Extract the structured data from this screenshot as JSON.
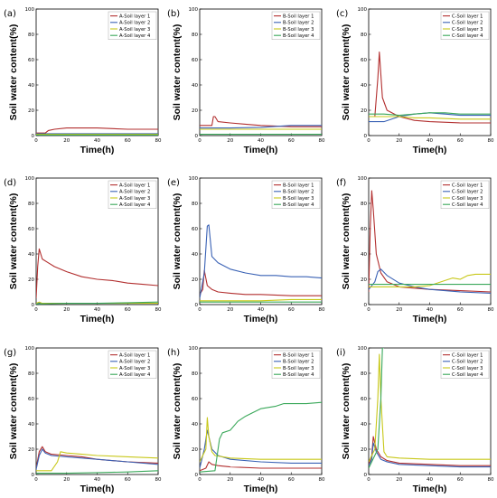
{
  "colors": {
    "layer1": "#b22f2f",
    "layer2": "#3a62b5",
    "layer3": "#c8c81a",
    "layer4": "#3aa85a"
  },
  "chart_data": [
    {
      "type": "line",
      "panel": "(a)",
      "xlabel": "Time(h)",
      "ylabel": "Soil water content(%)",
      "xlim": [
        0,
        80
      ],
      "ylim": [
        0,
        100
      ],
      "xticks": [
        0,
        20,
        40,
        60,
        80
      ],
      "yticks": [
        0,
        20,
        40,
        60,
        80,
        100
      ],
      "legend": "top-right",
      "series": [
        {
          "name": "A-Soil layer 1",
          "color": "#b22f2f",
          "x": [
            0,
            6,
            8,
            12,
            20,
            30,
            40,
            60,
            80
          ],
          "y": [
            2,
            2,
            4,
            5,
            6,
            6,
            6,
            5,
            5
          ]
        },
        {
          "name": "A-Soil layer 2",
          "color": "#3a62b5",
          "x": [
            0,
            20,
            40,
            60,
            80
          ],
          "y": [
            1.5,
            1.5,
            1.5,
            1.5,
            1.5
          ]
        },
        {
          "name": "A-Soil layer 3",
          "color": "#c8c81a",
          "x": [
            0,
            20,
            40,
            60,
            80
          ],
          "y": [
            1,
            1,
            1,
            1,
            1
          ]
        },
        {
          "name": "A-Soil layer 4",
          "color": "#3aa85a",
          "x": [
            0,
            20,
            40,
            60,
            80
          ],
          "y": [
            0.5,
            0.5,
            0.5,
            0.5,
            0.5
          ]
        }
      ]
    },
    {
      "type": "line",
      "panel": "(b)",
      "xlabel": "Time(h)",
      "ylabel": "Soil water content(%)",
      "xlim": [
        0,
        80
      ],
      "ylim": [
        0,
        100
      ],
      "xticks": [
        0,
        20,
        40,
        60,
        80
      ],
      "yticks": [
        0,
        20,
        40,
        60,
        80,
        100
      ],
      "legend": "top-right",
      "series": [
        {
          "name": "B-Soil layer 1",
          "color": "#b22f2f",
          "x": [
            0,
            8,
            9,
            10,
            12,
            20,
            30,
            40,
            60,
            80
          ],
          "y": [
            8,
            8,
            15,
            15,
            11,
            10,
            9,
            8,
            7,
            7
          ]
        },
        {
          "name": "B-Soil layer 2",
          "color": "#3a62b5",
          "x": [
            0,
            20,
            40,
            60,
            80
          ],
          "y": [
            6,
            6,
            6.5,
            8,
            8
          ]
        },
        {
          "name": "B-Soil layer 3",
          "color": "#c8c81a",
          "x": [
            0,
            20,
            40,
            60,
            80
          ],
          "y": [
            5,
            5,
            5,
            5,
            5
          ]
        },
        {
          "name": "B-Soil layer 4",
          "color": "#3aa85a",
          "x": [
            0,
            20,
            40,
            60,
            80
          ],
          "y": [
            1,
            1,
            1,
            1,
            1
          ]
        }
      ]
    },
    {
      "type": "line",
      "panel": "(c)",
      "xlabel": "Time(h)",
      "ylabel": "Soil water content(%)",
      "xlim": [
        0,
        80
      ],
      "ylim": [
        0,
        100
      ],
      "xticks": [
        0,
        20,
        40,
        60,
        80
      ],
      "yticks": [
        0,
        20,
        40,
        60,
        80,
        100
      ],
      "legend": "top-right",
      "series": [
        {
          "name": "C-Soil layer 1",
          "color": "#b22f2f",
          "x": [
            0,
            4,
            6,
            7,
            9,
            12,
            20,
            30,
            40,
            60,
            80
          ],
          "y": [
            15,
            15,
            45,
            66,
            30,
            20,
            15,
            12,
            11,
            10,
            10
          ]
        },
        {
          "name": "C-Soil layer 2",
          "color": "#3a62b5",
          "x": [
            0,
            10,
            20,
            30,
            40,
            50,
            60,
            70,
            80
          ],
          "y": [
            11,
            11,
            15,
            17,
            18,
            17,
            16,
            16,
            16
          ]
        },
        {
          "name": "C-Soil layer 3",
          "color": "#c8c81a",
          "x": [
            0,
            10,
            20,
            30,
            40,
            60,
            80
          ],
          "y": [
            15,
            15,
            15,
            14,
            14,
            13,
            13
          ]
        },
        {
          "name": "C-Soil layer 4",
          "color": "#3aa85a",
          "x": [
            0,
            10,
            20,
            30,
            40,
            50,
            60,
            70,
            80
          ],
          "y": [
            17,
            17,
            16,
            17,
            18,
            18,
            17,
            17,
            17
          ]
        }
      ]
    },
    {
      "type": "line",
      "panel": "(d)",
      "xlabel": "Time(h)",
      "ylabel": "Soil water content(%)",
      "xlim": [
        0,
        80
      ],
      "ylim": [
        0,
        100
      ],
      "xticks": [
        0,
        20,
        40,
        60,
        80
      ],
      "yticks": [
        0,
        20,
        40,
        60,
        80,
        100
      ],
      "legend": "top-right",
      "series": [
        {
          "name": "A-Soil layer 1",
          "color": "#b22f2f",
          "x": [
            0,
            1,
            2,
            4,
            8,
            12,
            20,
            30,
            40,
            50,
            60,
            70,
            80
          ],
          "y": [
            5,
            30,
            44,
            36,
            33,
            30,
            26,
            22,
            20,
            19,
            17,
            16,
            15
          ]
        },
        {
          "name": "A-Soil layer 2",
          "color": "#3a62b5",
          "x": [
            0,
            20,
            40,
            60,
            80
          ],
          "y": [
            1,
            1,
            1,
            1,
            1
          ]
        },
        {
          "name": "A-Soil layer 3",
          "color": "#c8c81a",
          "x": [
            0,
            2,
            4,
            20,
            40,
            60,
            80
          ],
          "y": [
            1,
            2,
            1,
            1,
            1,
            1,
            1
          ]
        },
        {
          "name": "A-Soil layer 4",
          "color": "#3aa85a",
          "x": [
            0,
            20,
            40,
            60,
            80
          ],
          "y": [
            0.5,
            1,
            1,
            1.5,
            2
          ]
        }
      ]
    },
    {
      "type": "line",
      "panel": "(e)",
      "xlabel": "Time(h)",
      "ylabel": "Soil water content(%)",
      "xlim": [
        0,
        80
      ],
      "ylim": [
        0,
        100
      ],
      "xticks": [
        0,
        20,
        40,
        60,
        80
      ],
      "yticks": [
        0,
        20,
        40,
        60,
        80,
        100
      ],
      "legend": "top-right",
      "series": [
        {
          "name": "B-Soil layer 1",
          "color": "#b22f2f",
          "x": [
            0,
            2,
            3,
            5,
            8,
            12,
            20,
            30,
            40,
            60,
            80
          ],
          "y": [
            8,
            12,
            27,
            15,
            12,
            10,
            9,
            8,
            8,
            7,
            7
          ]
        },
        {
          "name": "B-Soil layer 2",
          "color": "#3a62b5",
          "x": [
            0,
            3,
            5,
            6,
            8,
            12,
            20,
            30,
            40,
            50,
            60,
            70,
            80
          ],
          "y": [
            5,
            25,
            62,
            63,
            38,
            33,
            28,
            25,
            23,
            23,
            22,
            22,
            21
          ]
        },
        {
          "name": "B-Soil layer 3",
          "color": "#c8c81a",
          "x": [
            0,
            20,
            40,
            60,
            80
          ],
          "y": [
            3,
            3,
            3,
            4,
            4
          ]
        },
        {
          "name": "B-Soil layer 4",
          "color": "#3aa85a",
          "x": [
            0,
            20,
            40,
            60,
            80
          ],
          "y": [
            2,
            2,
            2,
            2,
            2
          ]
        }
      ]
    },
    {
      "type": "line",
      "panel": "(f)",
      "xlabel": "Time(h)",
      "ylabel": "Soil water content(%)",
      "xlim": [
        0,
        80
      ],
      "ylim": [
        0,
        100
      ],
      "xticks": [
        0,
        20,
        40,
        60,
        80
      ],
      "yticks": [
        0,
        20,
        40,
        60,
        80,
        100
      ],
      "legend": "top-right",
      "series": [
        {
          "name": "C-Soil layer 1",
          "color": "#b22f2f",
          "x": [
            0,
            1,
            2,
            3,
            5,
            8,
            12,
            20,
            30,
            40,
            60,
            80
          ],
          "y": [
            10,
            60,
            90,
            75,
            40,
            25,
            18,
            14,
            13,
            12,
            11,
            10
          ]
        },
        {
          "name": "C-Soil layer 2",
          "color": "#3a62b5",
          "x": [
            0,
            4,
            6,
            8,
            12,
            20,
            30,
            40,
            60,
            80
          ],
          "y": [
            12,
            18,
            26,
            28,
            23,
            17,
            14,
            12,
            10,
            9
          ]
        },
        {
          "name": "C-Soil layer 3",
          "color": "#c8c81a",
          "x": [
            0,
            10,
            20,
            30,
            40,
            50,
            55,
            60,
            65,
            70,
            80
          ],
          "y": [
            14,
            14,
            14,
            14,
            15,
            19,
            21,
            20,
            23,
            24,
            24
          ]
        },
        {
          "name": "C-Soil layer 4",
          "color": "#3aa85a",
          "x": [
            0,
            10,
            20,
            40,
            60,
            80
          ],
          "y": [
            16,
            16,
            16,
            16,
            16,
            16
          ]
        }
      ]
    },
    {
      "type": "line",
      "panel": "(g)",
      "xlabel": "Time(h)",
      "ylabel": "Soil water content(%)",
      "xlim": [
        0,
        80
      ],
      "ylim": [
        0,
        100
      ],
      "xticks": [
        0,
        20,
        40,
        60,
        80
      ],
      "yticks": [
        0,
        20,
        40,
        60,
        80,
        100
      ],
      "legend": "top-right",
      "series": [
        {
          "name": "A-Soil layer 1",
          "color": "#b22f2f",
          "x": [
            0,
            2,
            4,
            6,
            10,
            20,
            30,
            40,
            60,
            80
          ],
          "y": [
            5,
            18,
            22,
            18,
            16,
            15,
            14,
            12,
            10,
            9
          ]
        },
        {
          "name": "A-Soil layer 2",
          "color": "#3a62b5",
          "x": [
            0,
            2,
            4,
            6,
            10,
            20,
            30,
            40,
            60,
            80
          ],
          "y": [
            4,
            15,
            20,
            17,
            15,
            14,
            13,
            12,
            10,
            8
          ]
        },
        {
          "name": "A-Soil layer 3",
          "color": "#c8c81a",
          "x": [
            0,
            10,
            14,
            16,
            20,
            30,
            40,
            60,
            80
          ],
          "y": [
            3,
            3,
            10,
            18,
            17,
            16,
            15,
            14,
            13
          ]
        },
        {
          "name": "A-Soil layer 4",
          "color": "#3aa85a",
          "x": [
            0,
            20,
            40,
            60,
            80
          ],
          "y": [
            1,
            1,
            1.5,
            2,
            3
          ]
        }
      ]
    },
    {
      "type": "line",
      "panel": "(h)",
      "xlabel": "Time(h)",
      "ylabel": "Soil water content(%)",
      "xlim": [
        0,
        80
      ],
      "ylim": [
        0,
        100
      ],
      "xticks": [
        0,
        20,
        40,
        60,
        80
      ],
      "yticks": [
        0,
        20,
        40,
        60,
        80,
        100
      ],
      "legend": "top-right",
      "series": [
        {
          "name": "B-Soil layer 1",
          "color": "#b22f2f",
          "x": [
            0,
            4,
            6,
            8,
            12,
            20,
            40,
            60,
            80
          ],
          "y": [
            3,
            5,
            10,
            8,
            7,
            6,
            5,
            5,
            5
          ]
        },
        {
          "name": "B-Soil layer 2",
          "color": "#3a62b5",
          "x": [
            0,
            3,
            5,
            6,
            8,
            12,
            20,
            40,
            60,
            80
          ],
          "y": [
            5,
            20,
            35,
            30,
            20,
            15,
            12,
            10,
            9,
            9
          ]
        },
        {
          "name": "B-Soil layer 3",
          "color": "#c8c81a",
          "x": [
            0,
            4,
            5,
            6,
            8,
            10,
            20,
            40,
            60,
            80
          ],
          "y": [
            10,
            20,
            45,
            30,
            18,
            15,
            13,
            12,
            12,
            12
          ]
        },
        {
          "name": "B-Soil layer 4",
          "color": "#3aa85a",
          "x": [
            0,
            10,
            13,
            15,
            20,
            25,
            30,
            35,
            40,
            50,
            55,
            60,
            70,
            80
          ],
          "y": [
            2,
            3,
            28,
            33,
            35,
            42,
            46,
            49,
            52,
            54,
            56,
            56,
            56,
            57
          ]
        }
      ]
    },
    {
      "type": "line",
      "panel": "(i)",
      "xlabel": "Time(h)",
      "ylabel": "Soil water content(%)",
      "xlim": [
        0,
        80
      ],
      "ylim": [
        0,
        100
      ],
      "xticks": [
        0,
        20,
        40,
        60,
        80
      ],
      "yticks": [
        0,
        20,
        40,
        60,
        80,
        100
      ],
      "legend": "top-right",
      "series": [
        {
          "name": "C-Soil layer 1",
          "color": "#b22f2f",
          "x": [
            0,
            2,
            3,
            5,
            8,
            12,
            20,
            40,
            60,
            80
          ],
          "y": [
            8,
            15,
            30,
            20,
            14,
            11,
            9,
            8,
            7,
            7
          ]
        },
        {
          "name": "C-Soil layer 2",
          "color": "#3a62b5",
          "x": [
            0,
            2,
            3,
            5,
            8,
            12,
            20,
            40,
            60,
            80
          ],
          "y": [
            7,
            12,
            25,
            18,
            12,
            10,
            8,
            7,
            6,
            6
          ]
        },
        {
          "name": "C-Soil layer 3",
          "color": "#c8c81a",
          "x": [
            0,
            4,
            6,
            7,
            8,
            10,
            12,
            20,
            40,
            60,
            80
          ],
          "y": [
            10,
            20,
            60,
            95,
            60,
            18,
            14,
            13,
            12,
            12,
            12
          ]
        },
        {
          "name": "C-Soil layer 4",
          "color": "#3aa85a",
          "x": [
            0,
            6,
            8,
            9,
            10
          ],
          "y": [
            5,
            20,
            60,
            100,
            100
          ]
        }
      ]
    }
  ]
}
